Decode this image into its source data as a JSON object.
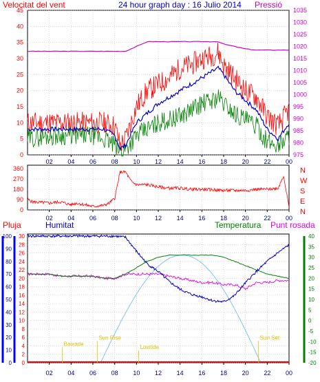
{
  "chart_data": [
    {
      "type": "line",
      "title": "24 hour graph day : 16 Julio 2014",
      "left_axis_label": "Velocitat del vent",
      "right_axis_label": "Pressió",
      "x_ticks": [
        "02",
        "04",
        "06",
        "08",
        "10",
        "12",
        "14",
        "16",
        "18",
        "20",
        "22",
        "00"
      ],
      "left_ticks": [
        "0",
        "5",
        "10",
        "15",
        "20",
        "25",
        "30",
        "35",
        "40",
        "45"
      ],
      "right_ticks": [
        "975",
        "980",
        "985",
        "990",
        "995",
        "1000",
        "1005",
        "1010",
        "1015",
        "1020",
        "1025",
        "1030",
        "1035"
      ],
      "ylim_left": [
        0,
        45
      ],
      "ylim_right": [
        975,
        1035
      ],
      "grid": true,
      "colors": {
        "gust": "#ff0000",
        "avg_speed": "#0000c8",
        "min_speed": "#008000",
        "pressure": "#c800c8"
      },
      "x_hours": [
        0,
        2,
        4,
        6,
        7,
        8,
        8.5,
        9,
        10,
        11,
        12,
        13,
        14,
        15,
        16,
        17,
        17.5,
        18,
        19,
        20,
        21,
        22,
        23,
        24
      ],
      "series": [
        {
          "key": "gust",
          "values": [
            10,
            10,
            10,
            10,
            10,
            9,
            3,
            5,
            15,
            20,
            22,
            24,
            27,
            28,
            30,
            31,
            32,
            28,
            24,
            20,
            18,
            12,
            9,
            14
          ]
        },
        {
          "key": "avg_speed",
          "values": [
            8,
            8,
            8,
            8,
            8,
            6,
            2,
            3,
            10,
            13,
            16,
            18,
            20,
            22,
            24,
            26,
            27,
            25,
            20,
            17,
            14,
            8,
            5,
            10
          ]
        },
        {
          "key": "min_speed",
          "values": [
            5,
            6,
            6,
            6,
            5,
            3,
            1,
            2,
            6,
            8,
            10,
            11,
            12,
            14,
            16,
            17,
            18,
            16,
            13,
            11,
            9,
            4,
            3,
            6
          ]
        },
        {
          "key": "pressure",
          "values": [
            1018,
            1018,
            1018,
            1018,
            1018,
            1018,
            1018,
            1018,
            1020,
            1022,
            1022,
            1022,
            1022,
            1022,
            1022,
            1022,
            1022,
            1021,
            1020,
            1019,
            1018.5,
            1018.5,
            1018.5,
            1018.5
          ]
        }
      ]
    },
    {
      "type": "line",
      "title": "",
      "right_labels": [
        "N",
        "W",
        "S",
        "E",
        "N"
      ],
      "left_ticks": [
        "360",
        "270",
        "180",
        "90",
        "0"
      ],
      "x_ticks": [
        "02",
        "04",
        "06",
        "08",
        "10",
        "12",
        "14",
        "16",
        "18",
        "20",
        "22",
        "00"
      ],
      "ylim": [
        0,
        360
      ],
      "grid": true,
      "colors": {
        "direction": "#ff0000"
      },
      "x_hours": [
        0,
        0.5,
        2,
        3,
        4,
        4.5,
        5,
        6,
        7,
        7.5,
        8,
        8.5,
        9,
        9.5,
        10,
        11,
        12,
        13,
        14,
        15,
        16,
        17,
        18,
        19,
        20,
        21,
        22,
        23,
        23.5,
        24
      ],
      "series": [
        {
          "key": "direction",
          "values": [
            90,
            70,
            60,
            70,
            45,
            60,
            50,
            30,
            40,
            60,
            100,
            330,
            330,
            250,
            220,
            220,
            200,
            190,
            190,
            180,
            180,
            175,
            170,
            170,
            170,
            180,
            180,
            190,
            300,
            20
          ]
        }
      ]
    },
    {
      "type": "line",
      "labels": {
        "rain": "Pluja",
        "humidity": "Humitat",
        "temperature": "Temperatura",
        "dewpoint": "Punt rosada"
      },
      "rain_ticks": [
        "0",
        "2",
        "4",
        "6",
        "8",
        "10",
        "12",
        "14",
        "16",
        "18",
        "20",
        "22",
        "24",
        "26",
        "28",
        "30"
      ],
      "humidity_ticks": [
        "0",
        "10",
        "20",
        "30",
        "40",
        "50",
        "60",
        "70",
        "80",
        "90",
        "100"
      ],
      "temp_ticks": [
        "-20",
        "-15",
        "-10",
        "-5",
        "0",
        "5",
        "10",
        "15",
        "20",
        "25",
        "30",
        "35",
        "40"
      ],
      "x_ticks": [
        "02",
        "04",
        "06",
        "08",
        "10",
        "12",
        "14",
        "16",
        "18",
        "20",
        "22",
        "00"
      ],
      "ylim_rain": [
        0,
        30
      ],
      "ylim_temp": [
        -20,
        40
      ],
      "grid": true,
      "colors": {
        "humidity": "#0000c8",
        "temperature": "#008000",
        "dewpoint": "#e000e0",
        "solar": "#80c0ff",
        "rain": "#ff0000",
        "events": "#e0c000"
      },
      "x_hours": [
        0,
        1,
        2,
        3,
        4,
        5,
        6,
        7,
        8,
        9,
        10,
        11,
        12,
        13,
        14,
        15,
        16,
        17,
        18,
        19,
        20,
        21,
        22,
        23,
        24
      ],
      "series": [
        {
          "key": "humidity",
          "values": [
            100,
            100,
            100,
            100,
            100,
            100,
            100,
            100,
            100,
            99,
            88,
            78,
            72,
            64,
            58,
            54,
            52,
            49,
            48,
            53,
            63,
            72,
            80,
            87,
            93
          ]
        },
        {
          "key": "temperature",
          "values": [
            22,
            22,
            22,
            21,
            21,
            21,
            21,
            20,
            20,
            22,
            25,
            28,
            30,
            31,
            31,
            31,
            31,
            31,
            30,
            28,
            26,
            24,
            22,
            21,
            20
          ]
        },
        {
          "key": "dewpoint",
          "values": [
            22,
            22,
            22,
            21,
            21,
            21,
            21,
            20,
            20,
            22,
            22,
            22,
            22,
            21,
            20,
            19,
            18,
            18,
            17,
            17,
            15,
            18,
            18,
            19,
            19
          ]
        }
      ],
      "solar": {
        "rise_hour": 6.7,
        "set_hour": 21.4,
        "peak_hour": 14.2,
        "peak_temp": 31
      },
      "events": [
        {
          "label": "Baixade",
          "hour": 3.2,
          "temp": -12
        },
        {
          "label": "Sun Rise",
          "hour": 6.4,
          "temp": -9
        },
        {
          "label": "Lowtide",
          "hour": 10.2,
          "temp": -13.5
        },
        {
          "label": "Sun Set",
          "hour": 21.2,
          "temp": -9
        }
      ]
    }
  ]
}
